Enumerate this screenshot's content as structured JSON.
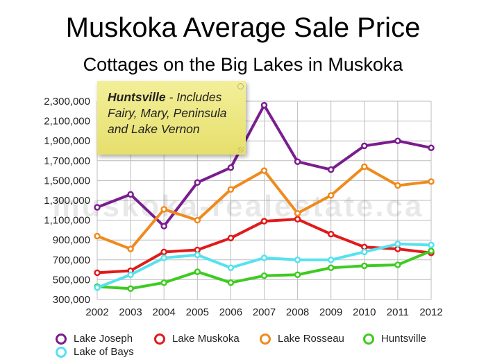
{
  "header": {
    "title": "Muskoka Average Sale Price",
    "subtitle": "Cottages on the Big Lakes in Muskoka"
  },
  "annotation": {
    "bold": "Huntsville",
    "text": " - Includes Fairy, Mary, Peninsula and Lake Vernon"
  },
  "watermark": "muskoka-realestate.ca",
  "chart_data": {
    "type": "line",
    "title": "Muskoka Average Sale Price",
    "subtitle": "Cottages on the Big Lakes in Muskoka",
    "xlabel": "",
    "ylabel": "",
    "x": [
      "2002",
      "2003",
      "2004",
      "2005",
      "2006",
      "2007",
      "2008",
      "2009",
      "2010",
      "2011",
      "2012"
    ],
    "ylim": [
      300000,
      2300000
    ],
    "yticks": [
      "300,000",
      "500,000",
      "700,000",
      "900,000",
      "1,100,000",
      "1,300,000",
      "1,500,000",
      "1,700,000",
      "1,900,000",
      "2,100,000",
      "2,300,000"
    ],
    "grid": true,
    "legend": "bottom",
    "series": [
      {
        "name": "Lake Joseph",
        "color": "#7a1d8f",
        "values": [
          1230000,
          1360000,
          1040000,
          1480000,
          1630000,
          2260000,
          1690000,
          1610000,
          1850000,
          1900000,
          1830000
        ]
      },
      {
        "name": "Lake Muskoka",
        "color": "#e01b1b",
        "values": [
          570000,
          590000,
          780000,
          800000,
          920000,
          1090000,
          1110000,
          960000,
          830000,
          810000,
          770000
        ]
      },
      {
        "name": "Lake Rosseau",
        "color": "#f08a1c",
        "values": [
          940000,
          810000,
          1210000,
          1100000,
          1410000,
          1600000,
          1170000,
          1350000,
          1640000,
          1450000,
          1490000
        ]
      },
      {
        "name": "Huntsville",
        "color": "#3ecb21",
        "values": [
          430000,
          410000,
          470000,
          580000,
          470000,
          540000,
          550000,
          620000,
          640000,
          650000,
          790000
        ]
      },
      {
        "name": "Lake of Bays",
        "color": "#55e2ee",
        "values": [
          420000,
          550000,
          720000,
          750000,
          620000,
          720000,
          700000,
          700000,
          780000,
          860000,
          850000
        ]
      }
    ]
  }
}
